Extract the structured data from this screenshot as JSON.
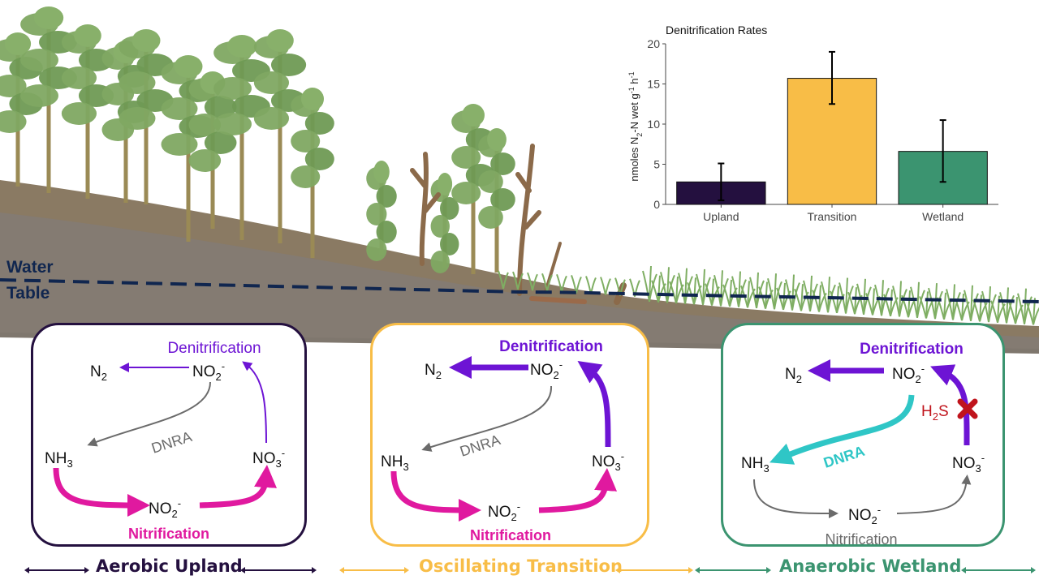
{
  "water_table": {
    "line1": "Water",
    "line2": "Table"
  },
  "panels": {
    "upland": {
      "denitrification": "Denitrification",
      "n2": "N",
      "n2_sub": "2",
      "no2_top": "NO",
      "no2_top_sub": "2",
      "no2_top_sup": "-",
      "dnra": "DNRA",
      "nh3": "NH",
      "nh3_sub": "3",
      "no3": "NO",
      "no3_sub": "3",
      "no3_sup": "-",
      "no2_bottom": "NO",
      "no2_bottom_sub": "2",
      "no2_bottom_sup": "-",
      "nitrification": "Nitrification"
    },
    "transition": {
      "denitrification": "Denitrification",
      "n2": "N",
      "n2_sub": "2",
      "no2_top": "NO",
      "no2_top_sub": "2",
      "no2_top_sup": "-",
      "dnra": "DNRA",
      "nh3": "NH",
      "nh3_sub": "3",
      "no3": "NO",
      "no3_sub": "3",
      "no3_sup": "-",
      "no2_bottom": "NO",
      "no2_bottom_sub": "2",
      "no2_bottom_sup": "-",
      "nitrification": "Nitrification"
    },
    "wetland": {
      "denitrification": "Denitrification",
      "n2": "N",
      "n2_sub": "2",
      "no2_top": "NO",
      "no2_top_sub": "2",
      "no2_top_sup": "-",
      "h2s": "H",
      "h2s_sub": "2",
      "h2s_tail": "S",
      "dnra": "DNRA",
      "nh3": "NH",
      "nh3_sub": "3",
      "no3": "NO",
      "no3_sub": "3",
      "no3_sup": "-",
      "no2_bottom": "NO",
      "no2_bottom_sub": "2",
      "no2_bottom_sup": "-",
      "nitrification": "Nitrification"
    }
  },
  "zones": {
    "upland": "Aerobic Upland",
    "transition": "Oscillating Transition",
    "wetland": "Anaerobic Wetland"
  },
  "colors": {
    "upland": "#24103f",
    "transition": "#f8bd47",
    "wetland": "#3b9470",
    "denitrification": "#6d14d4",
    "nitrification": "#e0199f",
    "dnra_grey": "#6b6b6b",
    "dnra_cyan": "#2fc6c6",
    "h2s": "#c0141c",
    "water_table": "#10264f"
  },
  "chart_data": {
    "type": "bar",
    "title": "Denitrification Rates",
    "categories": [
      "Upland",
      "Transition",
      "Wetland"
    ],
    "values": [
      2.8,
      15.7,
      6.6
    ],
    "error_low": [
      0.5,
      12.5,
      2.8
    ],
    "error_high": [
      5.1,
      19.0,
      10.5
    ],
    "colors": [
      "#24103f",
      "#f8bd47",
      "#3b9470"
    ],
    "ylabel": "nmoles N2-N wet g-1 h-1",
    "ylabel_parts": {
      "a": "nmoles N",
      "b": "2",
      "c": "-N wet g",
      "d": "-1",
      "e": " h",
      "f": "-1"
    },
    "yticks": [
      "0",
      "5",
      "10",
      "15",
      "20"
    ],
    "ylim": [
      0,
      20
    ],
    "grid": false
  }
}
